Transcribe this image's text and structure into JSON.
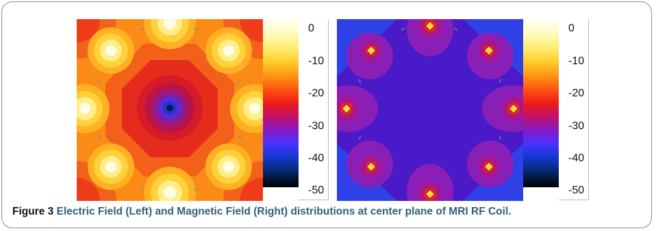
{
  "figure": {
    "label": "Figure 3",
    "caption": "Electric Field (Left) and Magnetic Field (Right) distributions at center plane of MRI RF Coil."
  },
  "colorbar": {
    "ticks": [
      "0",
      "-10",
      "-20",
      "-30",
      "-40",
      "-50"
    ],
    "range": [
      -50,
      0
    ]
  },
  "colors": {
    "caption_text": "#2f5f7b",
    "efield_background": "#fb8a17",
    "hfield_background": "#4a14c8"
  }
}
